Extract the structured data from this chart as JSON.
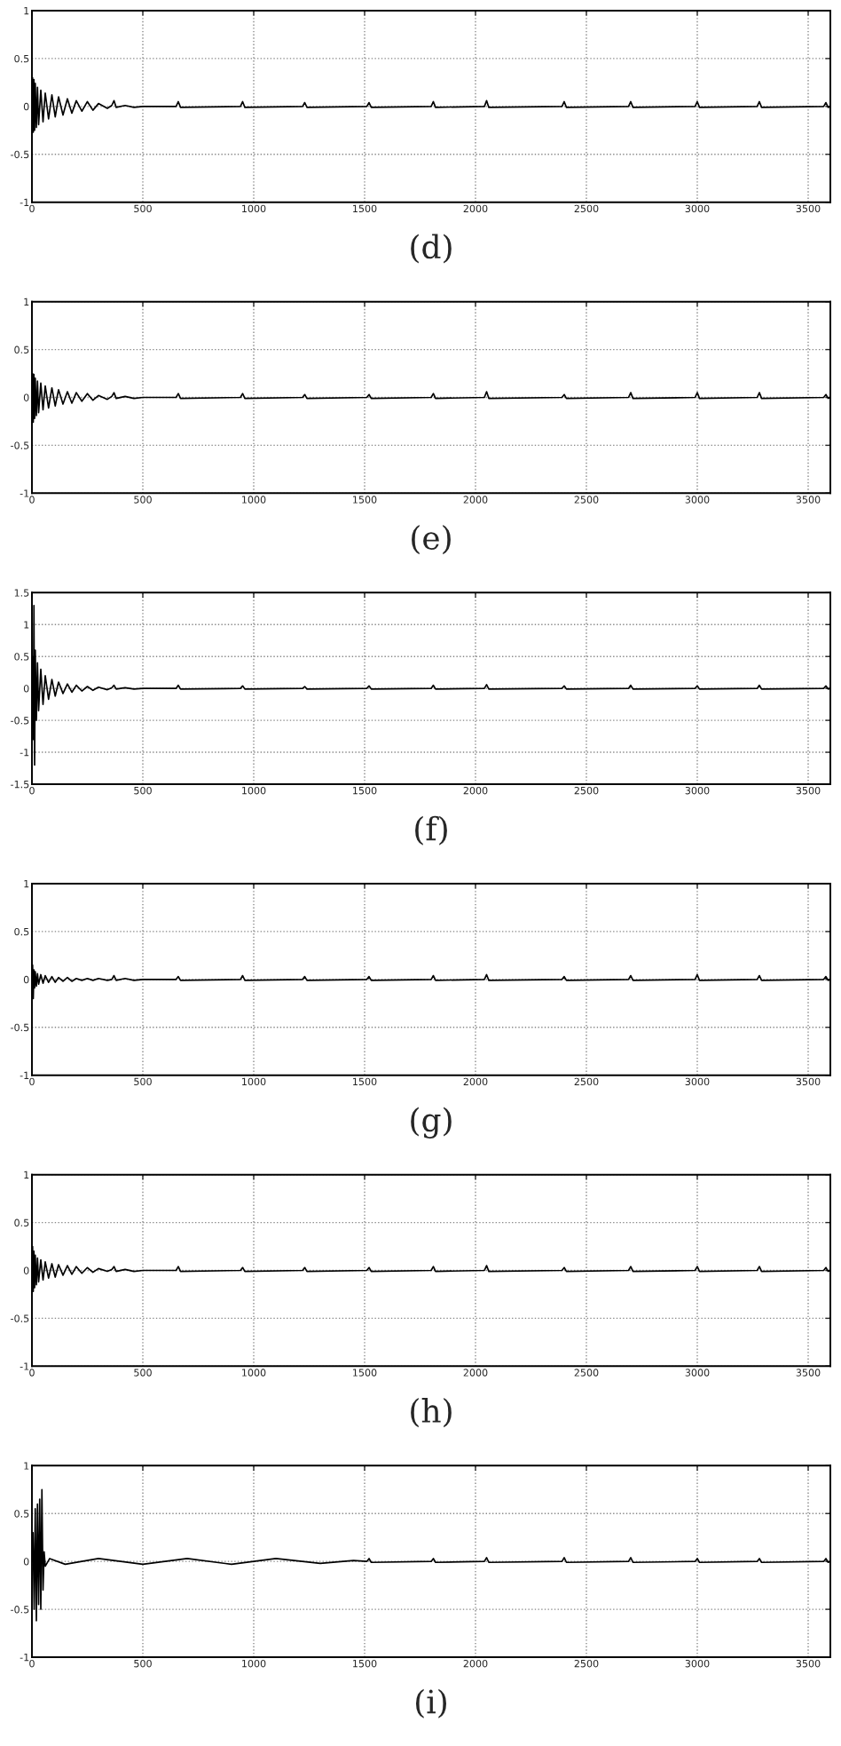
{
  "chart_data": [
    {
      "type": "line",
      "xlabel": "(d)",
      "xlim": [
        0,
        3600
      ],
      "ylim": [
        -1,
        1
      ],
      "xticks": [
        0,
        500,
        1000,
        1500,
        2000,
        2500,
        3000,
        3500
      ],
      "yticks": [
        -1,
        -0.5,
        0,
        0.5,
        1
      ],
      "grid": true,
      "x": [
        0,
        3,
        6,
        9,
        12,
        15,
        20,
        25,
        30,
        40,
        50,
        60,
        75,
        90,
        105,
        120,
        140,
        160,
        180,
        200,
        225,
        250,
        275,
        300,
        340,
        360,
        370,
        380,
        420,
        460,
        500,
        650,
        660,
        670,
        940,
        950,
        960,
        1220,
        1230,
        1240,
        1510,
        1520,
        1530,
        1800,
        1810,
        1820,
        2040,
        2050,
        2060,
        2390,
        2400,
        2410,
        2690,
        2700,
        2710,
        2990,
        3000,
        3010,
        3270,
        3280,
        3290,
        3570,
        3580,
        3590,
        3600
      ],
      "series": [
        {
          "color": "#000000",
          "values": [
            0,
            0.3,
            -0.27,
            0.28,
            -0.25,
            0.24,
            -0.22,
            0.2,
            -0.19,
            0.17,
            -0.16,
            0.14,
            -0.13,
            0.12,
            -0.11,
            0.1,
            -0.09,
            0.08,
            -0.07,
            0.06,
            -0.05,
            0.05,
            -0.04,
            0.03,
            -0.02,
            0.01,
            0.06,
            -0.01,
            0.01,
            -0.01,
            0,
            0,
            0.05,
            -0.01,
            0,
            0.05,
            -0.01,
            0,
            0.04,
            -0.01,
            0,
            0.04,
            -0.01,
            0,
            0.05,
            -0.01,
            0,
            0.06,
            -0.01,
            0,
            0.05,
            -0.01,
            0,
            0.05,
            -0.01,
            0,
            0.05,
            -0.01,
            0,
            0.05,
            -0.01,
            0,
            0.04,
            -0.01,
            0
          ]
        }
      ]
    },
    {
      "type": "line",
      "xlabel": "(e)",
      "xlim": [
        0,
        3600
      ],
      "ylim": [
        -1,
        1
      ],
      "xticks": [
        0,
        500,
        1000,
        1500,
        2000,
        2500,
        3000,
        3500
      ],
      "yticks": [
        -1,
        -0.5,
        0,
        0.5,
        1
      ],
      "grid": true,
      "x": [
        0,
        3,
        6,
        9,
        12,
        15,
        20,
        25,
        30,
        40,
        50,
        60,
        75,
        90,
        105,
        120,
        140,
        160,
        180,
        200,
        225,
        250,
        275,
        300,
        340,
        360,
        370,
        380,
        420,
        460,
        500,
        650,
        660,
        670,
        940,
        950,
        960,
        1220,
        1230,
        1240,
        1510,
        1520,
        1530,
        1800,
        1810,
        1820,
        2040,
        2050,
        2060,
        2390,
        2400,
        2410,
        2690,
        2700,
        2710,
        2990,
        3000,
        3010,
        3270,
        3280,
        3290,
        3570,
        3580,
        3590,
        3600
      ],
      "series": [
        {
          "color": "#000000",
          "values": [
            0,
            0.25,
            -0.26,
            0.24,
            -0.22,
            0.2,
            -0.19,
            0.17,
            -0.16,
            0.15,
            -0.13,
            0.12,
            -0.11,
            0.1,
            -0.09,
            0.08,
            -0.07,
            0.06,
            -0.06,
            0.05,
            -0.04,
            0.04,
            -0.03,
            0.02,
            -0.02,
            0.01,
            0.05,
            -0.01,
            0.01,
            -0.01,
            0,
            0,
            0.04,
            -0.01,
            0,
            0.04,
            -0.01,
            0,
            0.03,
            -0.01,
            0,
            0.03,
            -0.01,
            0,
            0.04,
            -0.01,
            0,
            0.06,
            -0.01,
            0,
            0.03,
            -0.01,
            0,
            0.05,
            -0.01,
            0,
            0.05,
            -0.01,
            0,
            0.05,
            -0.01,
            0,
            0.03,
            -0.01,
            0
          ]
        }
      ]
    },
    {
      "type": "line",
      "xlabel": "(f)",
      "xlim": [
        0,
        3600
      ],
      "ylim": [
        -1.5,
        1.5
      ],
      "xticks": [
        0,
        500,
        1000,
        1500,
        2000,
        2500,
        3000,
        3500
      ],
      "yticks": [
        -1.5,
        -1,
        -0.5,
        0,
        0.5,
        1,
        1.5
      ],
      "grid": true,
      "x": [
        0,
        3,
        6,
        9,
        12,
        15,
        20,
        25,
        30,
        40,
        50,
        60,
        75,
        90,
        105,
        120,
        140,
        160,
        180,
        200,
        225,
        250,
        275,
        300,
        340,
        360,
        370,
        380,
        420,
        460,
        500,
        650,
        660,
        670,
        940,
        950,
        960,
        1220,
        1230,
        1240,
        1510,
        1520,
        1530,
        1800,
        1810,
        1820,
        2040,
        2050,
        2060,
        2390,
        2400,
        2410,
        2690,
        2700,
        2710,
        2990,
        3000,
        3010,
        3270,
        3280,
        3290,
        3570,
        3580,
        3590,
        3600
      ],
      "series": [
        {
          "color": "#000000",
          "values": [
            0,
            0.5,
            -0.8,
            1.3,
            -1.2,
            0.6,
            -0.5,
            0.4,
            -0.35,
            0.3,
            -0.25,
            0.2,
            -0.17,
            0.14,
            -0.12,
            0.1,
            -0.08,
            0.07,
            -0.06,
            0.05,
            -0.04,
            0.03,
            -0.03,
            0.02,
            -0.02,
            0.01,
            0.05,
            -0.01,
            0.01,
            -0.01,
            0,
            0,
            0.05,
            -0.01,
            0,
            0.04,
            -0.01,
            0,
            0.03,
            -0.01,
            0,
            0.04,
            -0.01,
            0,
            0.05,
            -0.01,
            0,
            0.06,
            -0.01,
            0,
            0.04,
            -0.01,
            0,
            0.05,
            -0.01,
            0,
            0.04,
            -0.01,
            0,
            0.05,
            -0.01,
            0,
            0.04,
            -0.01,
            0
          ]
        }
      ]
    },
    {
      "type": "line",
      "xlabel": "(g)",
      "xlim": [
        0,
        3600
      ],
      "ylim": [
        -1,
        1
      ],
      "xticks": [
        0,
        500,
        1000,
        1500,
        2000,
        2500,
        3000,
        3500
      ],
      "yticks": [
        -1,
        -0.5,
        0,
        0.5,
        1
      ],
      "grid": true,
      "x": [
        0,
        3,
        6,
        9,
        12,
        15,
        20,
        25,
        30,
        40,
        50,
        60,
        75,
        90,
        105,
        120,
        140,
        160,
        180,
        200,
        225,
        250,
        275,
        300,
        340,
        360,
        370,
        380,
        420,
        460,
        500,
        650,
        660,
        670,
        940,
        950,
        960,
        1220,
        1230,
        1240,
        1510,
        1520,
        1530,
        1800,
        1810,
        1820,
        2040,
        2050,
        2060,
        2390,
        2400,
        2410,
        2690,
        2700,
        2710,
        2990,
        3000,
        3010,
        3270,
        3280,
        3290,
        3570,
        3580,
        3590,
        3600
      ],
      "series": [
        {
          "color": "#000000",
          "values": [
            0,
            0.15,
            -0.2,
            0.1,
            -0.09,
            0.08,
            -0.07,
            0.06,
            -0.05,
            0.05,
            -0.04,
            0.04,
            -0.03,
            0.03,
            -0.03,
            0.02,
            -0.02,
            0.02,
            -0.02,
            0.01,
            -0.01,
            0.01,
            -0.01,
            0.01,
            -0.01,
            0,
            0.04,
            -0.01,
            0.01,
            -0.01,
            0,
            0,
            0.03,
            -0.01,
            0,
            0.04,
            -0.01,
            0,
            0.03,
            -0.01,
            0,
            0.03,
            -0.01,
            0,
            0.04,
            -0.01,
            0,
            0.05,
            -0.01,
            0,
            0.03,
            -0.01,
            0,
            0.04,
            -0.01,
            0,
            0.05,
            -0.01,
            0,
            0.04,
            -0.01,
            0,
            0.03,
            -0.01,
            0
          ]
        }
      ]
    },
    {
      "type": "line",
      "xlabel": "(h)",
      "xlim": [
        0,
        3600
      ],
      "ylim": [
        -1,
        1
      ],
      "xticks": [
        0,
        500,
        1000,
        1500,
        2000,
        2500,
        3000,
        3500
      ],
      "yticks": [
        -1,
        -0.5,
        0,
        0.5,
        1
      ],
      "grid": true,
      "x": [
        0,
        3,
        6,
        9,
        12,
        15,
        20,
        25,
        30,
        40,
        50,
        60,
        75,
        90,
        105,
        120,
        140,
        160,
        180,
        200,
        225,
        250,
        275,
        300,
        340,
        360,
        370,
        380,
        420,
        460,
        500,
        650,
        660,
        670,
        940,
        950,
        960,
        1220,
        1230,
        1240,
        1510,
        1520,
        1530,
        1800,
        1810,
        1820,
        2040,
        2050,
        2060,
        2390,
        2400,
        2410,
        2690,
        2700,
        2710,
        2990,
        3000,
        3010,
        3270,
        3280,
        3290,
        3570,
        3580,
        3590,
        3600
      ],
      "series": [
        {
          "color": "#000000",
          "values": [
            0,
            0.25,
            -0.22,
            0.2,
            -0.18,
            0.16,
            -0.15,
            0.13,
            -0.12,
            0.11,
            -0.1,
            0.09,
            -0.08,
            0.07,
            -0.07,
            0.06,
            -0.05,
            0.05,
            -0.04,
            0.04,
            -0.03,
            0.03,
            -0.02,
            0.02,
            -0.01,
            0.01,
            0.04,
            -0.01,
            0.01,
            -0.01,
            0,
            0,
            0.04,
            -0.01,
            0,
            0.03,
            -0.01,
            0,
            0.03,
            -0.01,
            0,
            0.03,
            -0.01,
            0,
            0.04,
            -0.01,
            0,
            0.05,
            -0.01,
            0,
            0.03,
            -0.01,
            0,
            0.04,
            -0.01,
            0,
            0.04,
            -0.01,
            0,
            0.04,
            -0.01,
            0,
            0.03,
            -0.01,
            0
          ]
        }
      ]
    },
    {
      "type": "line",
      "xlabel": "(i)",
      "xlim": [
        0,
        3600
      ],
      "ylim": [
        -1,
        1
      ],
      "xticks": [
        0,
        500,
        1000,
        1500,
        2000,
        2500,
        3000,
        3500
      ],
      "yticks": [
        -1,
        -0.5,
        0,
        0.5,
        1
      ],
      "grid": true,
      "x": [
        0,
        5,
        10,
        15,
        20,
        25,
        30,
        35,
        40,
        45,
        50,
        55,
        60,
        80,
        150,
        300,
        500,
        700,
        900,
        1100,
        1300,
        1450,
        1510,
        1520,
        1530,
        1800,
        1810,
        1820,
        2040,
        2050,
        2060,
        2390,
        2400,
        2410,
        2690,
        2700,
        2710,
        2990,
        3000,
        3010,
        3270,
        3280,
        3290,
        3570,
        3580,
        3590,
        3600
      ],
      "series": [
        {
          "color": "#000000",
          "values": [
            0,
            0.3,
            -0.5,
            0.55,
            -0.62,
            0.6,
            -0.45,
            0.65,
            -0.5,
            0.75,
            -0.3,
            0.1,
            -0.05,
            0.03,
            -0.03,
            0.03,
            -0.03,
            0.03,
            -0.03,
            0.03,
            -0.02,
            0.01,
            0,
            0.03,
            -0.01,
            0,
            0.03,
            -0.01,
            0,
            0.04,
            -0.01,
            0,
            0.04,
            -0.01,
            0,
            0.04,
            -0.01,
            0,
            0.03,
            -0.01,
            0,
            0.03,
            -0.01,
            0,
            0.03,
            -0.01,
            0
          ]
        }
      ]
    }
  ]
}
